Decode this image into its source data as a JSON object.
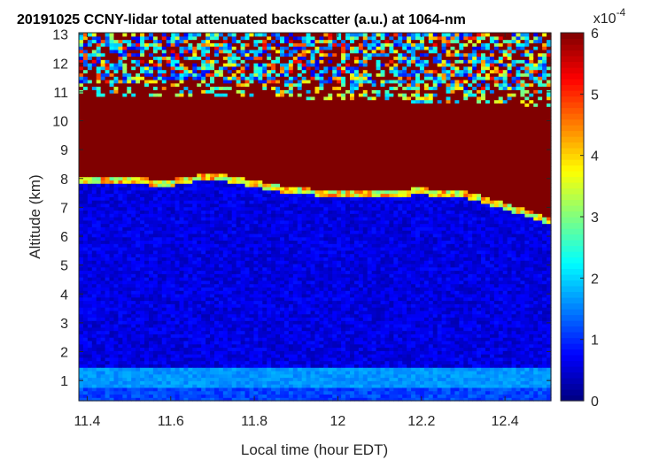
{
  "chart_data": {
    "type": "heatmap",
    "title": "20191025 CCNY-lidar total attenuated backscatter (a.u.) at 1064-nm",
    "xlabel": "Local time (hour EDT)",
    "ylabel": "Altitude (km)",
    "xlim": [
      11.38,
      12.51
    ],
    "ylim": [
      0.3,
      13.05
    ],
    "x_ticks": [
      11.4,
      11.6,
      11.8,
      12,
      12.2,
      12.4
    ],
    "x_tick_labels": [
      "11.4",
      "11.6",
      "11.8",
      "12",
      "12.2",
      "12.4"
    ],
    "y_ticks": [
      1,
      2,
      3,
      4,
      5,
      6,
      7,
      8,
      9,
      10,
      11,
      12,
      13
    ],
    "y_tick_labels": [
      "1",
      "2",
      "3",
      "4",
      "5",
      "6",
      "7",
      "8",
      "9",
      "10",
      "11",
      "12",
      "13"
    ],
    "colorbar": {
      "colormap": "jet",
      "range": [
        0,
        6
      ],
      "ticks": [
        0,
        1,
        2,
        3,
        4,
        5,
        6
      ],
      "tick_labels": [
        "0",
        "1",
        "2",
        "3",
        "4",
        "5",
        "6"
      ],
      "exponent_label": "x10",
      "exponent_power": "-4"
    },
    "layers": {
      "cloud_base_km": [
        [
          11.38,
          8.0
        ],
        [
          11.5,
          7.95
        ],
        [
          11.6,
          7.9
        ],
        [
          11.7,
          8.15
        ],
        [
          11.8,
          7.85
        ],
        [
          11.9,
          7.6
        ],
        [
          12.0,
          7.55
        ],
        [
          12.1,
          7.5
        ],
        [
          12.2,
          7.6
        ],
        [
          12.3,
          7.5
        ],
        [
          12.4,
          7.1
        ],
        [
          12.51,
          6.55
        ]
      ],
      "cloud_top_km": [
        [
          11.38,
          10.8
        ],
        [
          11.6,
          10.9
        ],
        [
          11.8,
          10.85
        ],
        [
          12.0,
          10.75
        ],
        [
          12.2,
          10.65
        ],
        [
          12.4,
          10.55
        ],
        [
          12.51,
          10.5
        ]
      ],
      "aerosol_layer_km": [
        0.8,
        1.5
      ]
    }
  }
}
